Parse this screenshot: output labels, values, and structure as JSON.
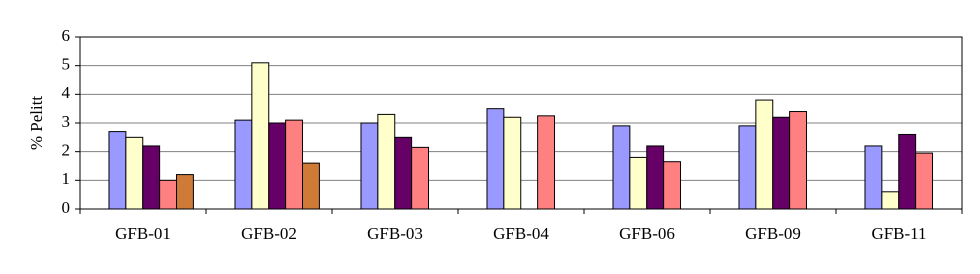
{
  "chart_data": {
    "type": "bar",
    "ylabel": "% Pelitt",
    "categories": [
      "GFB-01",
      "GFB-02",
      "GFB-03",
      "GFB-04",
      "GFB-06",
      "GFB-09",
      "GFB-11"
    ],
    "series": [
      {
        "color": "#9999ff",
        "values": [
          2.7,
          3.1,
          3.0,
          3.5,
          2.9,
          2.9,
          2.2
        ]
      },
      {
        "color": "#ffffcc",
        "values": [
          2.5,
          5.1,
          3.3,
          3.2,
          1.8,
          3.8,
          0.6
        ]
      },
      {
        "color": "#660066",
        "values": [
          2.2,
          3.0,
          2.5,
          null,
          2.2,
          3.2,
          2.6
        ]
      },
      {
        "color": "#ff8080",
        "values": [
          1.0,
          3.1,
          2.15,
          3.25,
          1.65,
          3.4,
          1.95
        ]
      },
      {
        "color": "#d07a38",
        "values": [
          1.2,
          1.6,
          null,
          null,
          null,
          null,
          null
        ]
      }
    ],
    "ylim": [
      0,
      6
    ],
    "yticks": [
      0,
      1,
      2,
      3,
      4,
      5,
      6
    ],
    "grid": true
  }
}
